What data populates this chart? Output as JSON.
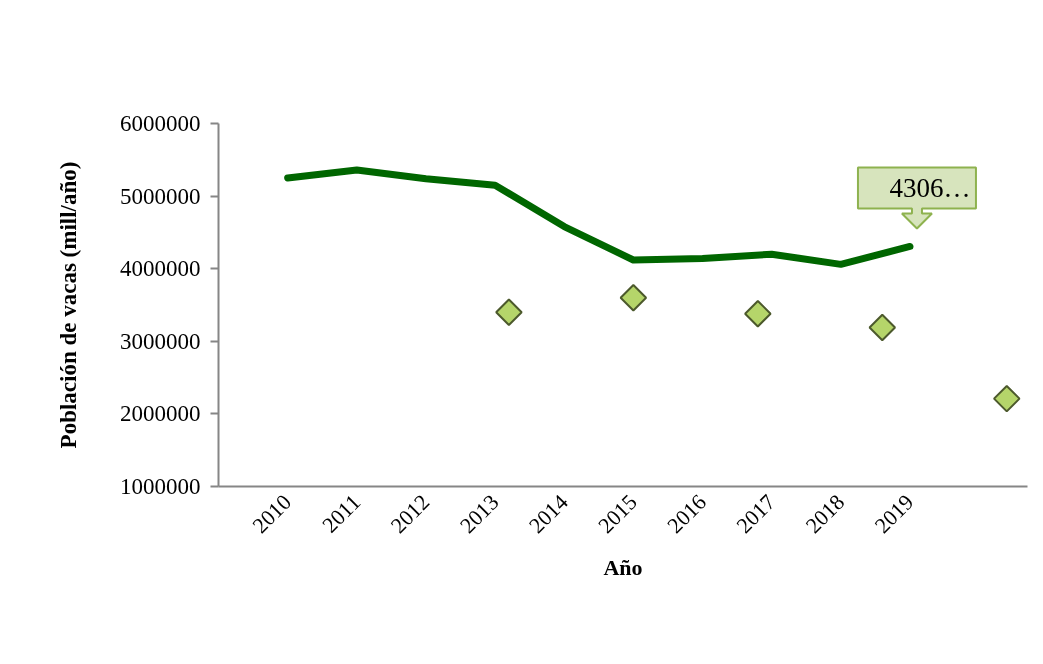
{
  "chart_data": {
    "type": "line",
    "xlabel": "Año",
    "ylabel": "Población de vacas (mill/año)",
    "x": [
      2010,
      2011,
      2012,
      2013,
      2014,
      2015,
      2016,
      2017,
      2018,
      2019
    ],
    "series": [
      {
        "color": "#006600",
        "values": [
          5250000,
          5360000,
          5240000,
          5150000,
          4580000,
          4120000,
          4140000,
          4200000,
          4060000,
          4306000
        ]
      },
      {
        "type": "scatter",
        "color": "#b5d56a",
        "marker": "diamond",
        "x": [
          2013.2,
          2015.0,
          2016.8,
          2018.6,
          2020.4
        ],
        "values": [
          3400000,
          3600000,
          3380000,
          3190000,
          2210000
        ]
      }
    ],
    "xlim": [
      2009,
      2020.7
    ],
    "xticks": [
      2010,
      2011,
      2012,
      2013,
      2014,
      2015,
      2016,
      2017,
      2018,
      2019
    ],
    "ylim": [
      1000000,
      6000000
    ],
    "yticks": [
      1000000,
      2000000,
      3000000,
      4000000,
      5000000,
      6000000
    ],
    "annotations": [
      {
        "text": "4306…",
        "x": 2019,
        "y": 4306000
      }
    ]
  }
}
